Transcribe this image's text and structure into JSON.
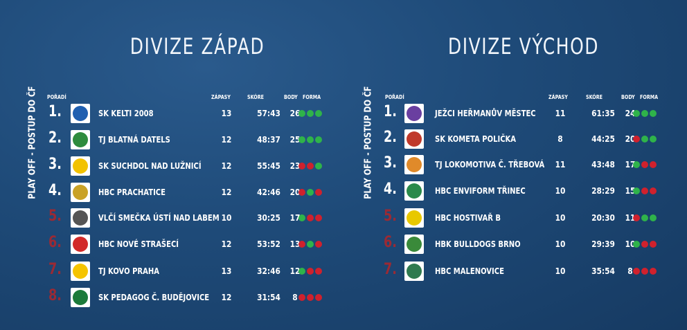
{
  "divisions": [
    {
      "title": "DIVIZE ZÁPAD",
      "side_label": "PLAY OFF - POSTUP DO ČF",
      "headers": {
        "rank": "POŘADÍ",
        "games": "ZÁPASY",
        "score": "SKÓRE",
        "points": "BODY",
        "form": "FORMA"
      },
      "teams": [
        {
          "rank": "1.",
          "name": "SK KELTI 2008",
          "games": "13",
          "score": "57:43",
          "points": "26",
          "form": [
            "W",
            "W",
            "W"
          ],
          "logo_color": "#1f5fb0",
          "logo_icon": "kelti-logo"
        },
        {
          "rank": "2.",
          "name": "TJ BLATNÁ DATELS",
          "games": "12",
          "score": "48:37",
          "points": "25",
          "form": [
            "W",
            "W",
            "W"
          ],
          "logo_color": "#2e8b3d",
          "logo_icon": "datels-logo"
        },
        {
          "rank": "3.",
          "name": "SK SUCHDOL NAD LUŽNICÍ",
          "games": "12",
          "score": "55:45",
          "points": "23",
          "form": [
            "L",
            "L",
            "W"
          ],
          "logo_color": "#f2c200",
          "logo_icon": "suchdol-logo"
        },
        {
          "rank": "4.",
          "name": "HBC PRACHATICE",
          "games": "12",
          "score": "42:46",
          "points": "20",
          "form": [
            "L",
            "W",
            "L"
          ],
          "logo_color": "#c9a227",
          "logo_icon": "prachatice-logo"
        },
        {
          "rank": "5.",
          "name": "VLČÍ SMEČKA ÚSTÍ NAD LABEM",
          "games": "10",
          "score": "30:25",
          "points": "17",
          "form": [
            "W",
            "L",
            "L"
          ],
          "logo_color": "#555555",
          "logo_icon": "wolf-logo"
        },
        {
          "rank": "6.",
          "name": "HBC NOVÉ STRAŠECÍ",
          "games": "12",
          "score": "53:52",
          "points": "13",
          "form": [
            "L",
            "W",
            "L"
          ],
          "logo_color": "#d22a2a",
          "logo_icon": "strasecí-logo"
        },
        {
          "rank": "7.",
          "name": "TJ KOVO PRAHA",
          "games": "13",
          "score": "32:46",
          "points": "12",
          "form": [
            "W",
            "L",
            "L"
          ],
          "logo_color": "#f5c400",
          "logo_icon": "kovo-logo"
        },
        {
          "rank": "8.",
          "name": "SK PEDAGOG Č. BUDĚJOVICE",
          "games": "12",
          "score": "31:54",
          "points": "8",
          "form": [
            "L",
            "L",
            "L"
          ],
          "logo_color": "#1c7a3a",
          "logo_icon": "pedagog-logo"
        }
      ]
    },
    {
      "title": "DIVIZE VÝCHOD",
      "side_label": "PLAY OFF - POSTUP DO ČF",
      "headers": {
        "rank": "POŘADÍ",
        "games": "ZÁPASY",
        "score": "SKÓRE",
        "points": "BODY",
        "form": "FORMA"
      },
      "teams": [
        {
          "rank": "1.",
          "name": "JEŽCI HEŘMANŮV MĚSTEC",
          "games": "11",
          "score": "61:35",
          "points": "24",
          "form": [
            "W",
            "W",
            "W"
          ],
          "logo_color": "#6a3fa0",
          "logo_icon": "jezci-logo"
        },
        {
          "rank": "2.",
          "name": "SK KOMETA POLIČKA",
          "games": "8",
          "score": "44:25",
          "points": "20",
          "form": [
            "L",
            "W",
            "W"
          ],
          "logo_color": "#c0392b",
          "logo_icon": "kometa-logo"
        },
        {
          "rank": "3.",
          "name": "TJ LOKOMOTIVA Č. TŘEBOVÁ",
          "games": "11",
          "score": "43:48",
          "points": "17",
          "form": [
            "W",
            "L",
            "L"
          ],
          "logo_color": "#e08a2a",
          "logo_icon": "lokomotiva-logo"
        },
        {
          "rank": "4.",
          "name": "HBC ENVIFORM TŘINEC",
          "games": "10",
          "score": "28:29",
          "points": "15",
          "form": [
            "W",
            "L",
            "L"
          ],
          "logo_color": "#2a8a4a",
          "logo_icon": "enviform-logo"
        },
        {
          "rank": "5.",
          "name": "HBC HOSTIVAŘ B",
          "games": "10",
          "score": "20:30",
          "points": "11",
          "form": [
            "L",
            "W",
            "W"
          ],
          "logo_color": "#e8c800",
          "logo_icon": "hostivar-logo"
        },
        {
          "rank": "6.",
          "name": "HBK BULLDOGS BRNO",
          "games": "10",
          "score": "29:39",
          "points": "10",
          "form": [
            "W",
            "L",
            "L"
          ],
          "logo_color": "#3a8a3a",
          "logo_icon": "bulldogs-logo"
        },
        {
          "rank": "7.",
          "name": "HBC MALENOVICE",
          "games": "10",
          "score": "35:54",
          "points": "8",
          "form": [
            "L",
            "L",
            "L"
          ],
          "logo_color": "#2f7a4f",
          "logo_icon": "malenovice-logo"
        }
      ]
    }
  ]
}
